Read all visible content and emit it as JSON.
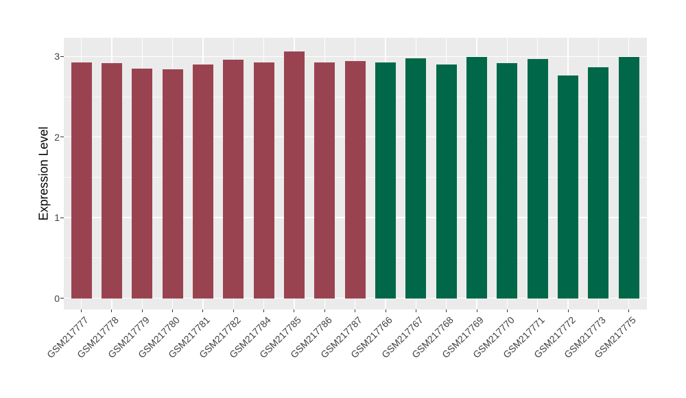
{
  "chart_data": {
    "type": "bar",
    "title": "",
    "xlabel": "",
    "ylabel": "Expression Level",
    "ylim": [
      0,
      3.21
    ],
    "yticks": [
      0,
      1,
      2,
      3
    ],
    "yminor": [
      0.5,
      1.5,
      2.5
    ],
    "grid": "horizontal major+minor, vertical major at each category",
    "legend_position": "none",
    "panel_background": "#EBEBEB",
    "gridline_color": "#FFFFFF",
    "axis_text_color": "#404040",
    "axis_title_color": "#000000",
    "tick_mark_color": "#333333",
    "categories": [
      "GSM217777",
      "GSM217778",
      "GSM217779",
      "GSM217780",
      "GSM217781",
      "GSM217782",
      "GSM217784",
      "GSM217785",
      "GSM217786",
      "GSM217787",
      "GSM217766",
      "GSM217767",
      "GSM217768",
      "GSM217769",
      "GSM217770",
      "GSM217771",
      "GSM217772",
      "GSM217773",
      "GSM217775"
    ],
    "values": [
      2.93,
      2.92,
      2.85,
      2.84,
      2.9,
      2.96,
      2.93,
      3.06,
      2.93,
      2.94,
      2.93,
      2.98,
      2.9,
      2.99,
      2.92,
      2.97,
      2.76,
      2.87,
      2.99
    ],
    "groups": [
      "group1",
      "group1",
      "group1",
      "group1",
      "group1",
      "group1",
      "group1",
      "group1",
      "group1",
      "group1",
      "group2",
      "group2",
      "group2",
      "group2",
      "group2",
      "group2",
      "group2",
      "group2",
      "group2"
    ],
    "group_colors": {
      "group1": "#9A4350",
      "group2": "#006848"
    }
  }
}
